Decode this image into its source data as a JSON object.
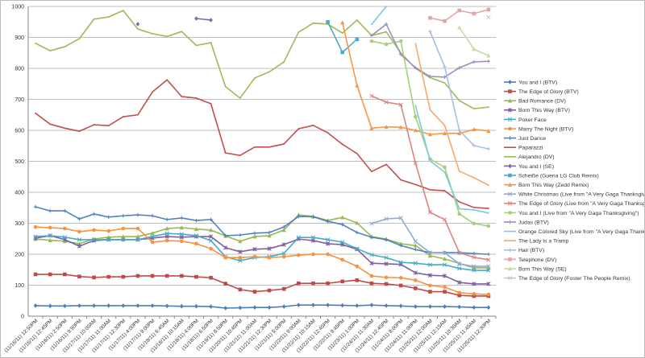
{
  "chart_data": {
    "type": "line",
    "title": "",
    "xlabel": "",
    "ylabel": "",
    "ylim": [
      0,
      1000
    ],
    "yticks": [
      0,
      100,
      200,
      300,
      400,
      500,
      600,
      700,
      800,
      900,
      1000
    ],
    "grid": true,
    "legend_position": "right",
    "categories": [
      "(11/16/11) 12:50PM",
      "(11/16/11) 12:45PM",
      "(11/16/11) 2:50PM",
      "(11/16/11) 9:50PM",
      "(11/17/11) 10:00AM",
      "(11/17/11) 11:00AM",
      "(11/17/11) 12:30PM",
      "(11/17/11) 4:00PM",
      "(11/17/11) 9:00PM",
      "(11/18/11) 6:45AM",
      "(11/18/11) 10:15AM",
      "(11/18/11) 4:00PM",
      "(11/18/11) 6:50PM",
      "(11/19/11) 8:50PM",
      "(11/20/11) 10:45PM",
      "(11/21/11) 11:00AM",
      "(11/21/11) 12:30PM",
      "(11/21/11) 5:00PM",
      "(11/22/11) 9:00AM",
      "(11/22/11) 10:15AM",
      "(11/22/11) 12:45PM",
      "(11/22/11) 9:45PM",
      "(11/23/11) 1:00PM",
      "(11/24/11) 11:30AM",
      "(11/24/11) 12:45PM",
      "(11/24/11) 8:00PM",
      "(11/24/11) 11:00PM",
      "(11/25/11) 12:00AM",
      "(11/25/11) 12:15AM",
      "(11/25/11) 10:30AM",
      "(11/25/11) 11:45AM",
      "(11/25/11) 12:30PM"
    ],
    "series": [
      {
        "name": "You and I (BTV)",
        "color": "#4A7EBB",
        "marker": "diamond",
        "values": [
          34,
          33,
          33,
          34,
          34,
          34,
          34,
          34,
          34,
          33,
          32,
          32,
          31,
          26,
          27,
          28,
          28,
          31,
          36,
          36,
          36,
          35,
          34,
          36,
          34,
          33,
          31,
          31,
          31,
          30,
          28,
          28
        ]
      },
      {
        "name": "The Edge of Glory (BTV)",
        "color": "#BE4B48",
        "marker": "square",
        "values": [
          135,
          135,
          135,
          128,
          125,
          127,
          127,
          130,
          130,
          130,
          130,
          127,
          124,
          105,
          86,
          79,
          83,
          88,
          106,
          106,
          106,
          112,
          116,
          106,
          104,
          99,
          90,
          79,
          79,
          67,
          65,
          65
        ]
      },
      {
        "name": "Bad Romance (DV)",
        "color": "#98B954",
        "marker": "triangle",
        "values": [
          249,
          245,
          242,
          234,
          249,
          255,
          257,
          257,
          268,
          283,
          286,
          281,
          278,
          259,
          242,
          257,
          260,
          278,
          327,
          322,
          309,
          319,
          301,
          257,
          249,
          234,
          228,
          195,
          185,
          170,
          156,
          156
        ]
      },
      {
        "name": "Born This Way (BTV)",
        "color": "#7D60A0",
        "marker": "star",
        "values": [
          252,
          260,
          247,
          226,
          244,
          247,
          247,
          247,
          252,
          257,
          255,
          257,
          257,
          221,
          208,
          216,
          218,
          231,
          249,
          244,
          234,
          231,
          216,
          171,
          169,
          167,
          140,
          132,
          130,
          109,
          104,
          104
        ]
      },
      {
        "name": "Poker Face",
        "color": "#46AAC5",
        "marker": "x",
        "values": [
          257,
          260,
          255,
          247,
          247,
          247,
          247,
          247,
          257,
          267,
          265,
          260,
          244,
          192,
          179,
          189,
          192,
          203,
          254,
          254,
          247,
          239,
          218,
          198,
          189,
          174,
          171,
          166,
          166,
          154,
          148,
          148
        ]
      },
      {
        "name": "Marry The Night (BTV)",
        "color": "#F69240",
        "marker": "circle",
        "values": [
          288,
          286,
          283,
          273,
          278,
          275,
          283,
          283,
          239,
          244,
          242,
          234,
          218,
          189,
          189,
          192,
          189,
          192,
          197,
          200,
          200,
          182,
          161,
          130,
          125,
          124,
          116,
          99,
          94,
          76,
          72,
          70
        ]
      },
      {
        "name": "Just Dance",
        "color": "#4F81BD",
        "marker": "plus",
        "values": [
          353,
          340,
          340,
          314,
          330,
          320,
          324,
          327,
          324,
          312,
          317,
          309,
          312,
          260,
          262,
          268,
          270,
          288,
          322,
          321,
          306,
          296,
          270,
          255,
          247,
          228,
          215,
          205,
          205,
          205,
          202,
          200
        ]
      },
      {
        "name": "Paparazzi",
        "color": "#C0504D",
        "marker": "none",
        "values": [
          655,
          620,
          607,
          597,
          618,
          615,
          644,
          650,
          724,
          763,
          709,
          704,
          686,
          527,
          519,
          546,
          546,
          556,
          605,
          616,
          592,
          555,
          525,
          467,
          490,
          440,
          425,
          408,
          405,
          369,
          351,
          348
        ]
      },
      {
        "name": "Alejandro (DV)",
        "color": "#9BBB59",
        "marker": "none",
        "values": [
          881,
          857,
          870,
          896,
          959,
          966,
          987,
          927,
          912,
          903,
          919,
          874,
          883,
          741,
          704,
          769,
          789,
          821,
          917,
          946,
          943,
          914,
          956,
          906,
          918,
          850,
          800,
          770,
          753,
          696,
          670,
          675
        ]
      },
      {
        "name": "You and I (SE)",
        "color": "#8064A2",
        "marker": "diamond",
        "values": [
          null,
          null,
          null,
          null,
          null,
          null,
          null,
          943,
          null,
          null,
          null,
          961,
          956,
          null,
          null,
          null,
          null,
          null,
          null,
          null,
          null,
          null,
          null,
          null,
          null,
          null,
          null,
          null,
          null,
          null,
          null,
          null
        ]
      },
      {
        "name": "Scheiße (Guena LG Club Remix)",
        "color": "#4BACC6",
        "marker": "square",
        "values": [
          null,
          null,
          null,
          null,
          null,
          null,
          null,
          null,
          null,
          null,
          null,
          null,
          null,
          null,
          null,
          null,
          null,
          null,
          null,
          null,
          950,
          852,
          894,
          null,
          null,
          null,
          null,
          null,
          null,
          null,
          null,
          null
        ]
      },
      {
        "name": "Born This Way (Zedd Remix)",
        "color": "#F79646",
        "marker": "triangle",
        "values": [
          null,
          null,
          null,
          null,
          null,
          null,
          null,
          null,
          null,
          null,
          null,
          null,
          null,
          null,
          null,
          null,
          null,
          null,
          null,
          null,
          null,
          948,
          745,
          607,
          611,
          610,
          600,
          587,
          590,
          590,
          603,
          598
        ]
      },
      {
        "name": "White Christmas (Live from \"A Very Gaga Thanksgiving\")",
        "color": "#8EABD6",
        "marker": "x",
        "values": [
          null,
          null,
          null,
          null,
          null,
          null,
          null,
          null,
          null,
          null,
          null,
          null,
          null,
          null,
          null,
          null,
          null,
          null,
          null,
          null,
          null,
          null,
          null,
          299,
          314,
          317,
          241,
          205,
          205,
          169,
          161,
          161
        ]
      },
      {
        "name": "The Edge of Glory (Live from \"A Very Gaga Thanksgiving\")",
        "color": "#D98582",
        "marker": "x",
        "values": [
          null,
          null,
          null,
          null,
          null,
          null,
          null,
          null,
          null,
          null,
          null,
          null,
          null,
          null,
          null,
          null,
          null,
          null,
          null,
          null,
          null,
          null,
          null,
          711,
          691,
          683,
          494,
          335,
          312,
          205,
          190,
          182
        ]
      },
      {
        "name": "You and I (Live from \"A Very Gaga Thanksgiving\")",
        "color": "#A9CF7A",
        "marker": "circle",
        "values": [
          null,
          null,
          null,
          null,
          null,
          null,
          null,
          null,
          null,
          null,
          null,
          null,
          null,
          null,
          null,
          null,
          null,
          null,
          null,
          null,
          null,
          null,
          null,
          888,
          878,
          888,
          644,
          507,
          481,
          330,
          299,
          291
        ]
      },
      {
        "name": "Judas (BTV)",
        "color": "#A08CC0",
        "marker": "plus",
        "values": [
          null,
          null,
          null,
          null,
          null,
          null,
          null,
          null,
          null,
          null,
          null,
          null,
          null,
          null,
          null,
          null,
          null,
          null,
          null,
          null,
          null,
          null,
          null,
          906,
          943,
          845,
          802,
          774,
          772,
          802,
          821,
          823
        ]
      },
      {
        "name": "Orange Colored Sky (Live from \"A Very Gaga Thanksgiving\")",
        "color": "#7FC8DC",
        "marker": "none",
        "values": [
          null,
          null,
          null,
          null,
          null,
          null,
          null,
          null,
          null,
          null,
          null,
          null,
          null,
          null,
          null,
          null,
          null,
          null,
          null,
          null,
          null,
          null,
          null,
          942,
          1000,
          null,
          680,
          501,
          465,
          347,
          343,
          333
        ]
      },
      {
        "name": "The Lady Is a Tramp",
        "color": "#F9A86A",
        "marker": "none",
        "values": [
          null,
          null,
          null,
          null,
          null,
          null,
          null,
          null,
          null,
          null,
          null,
          null,
          null,
          null,
          null,
          null,
          null,
          null,
          null,
          null,
          null,
          null,
          null,
          null,
          null,
          null,
          880,
          666,
          616,
          468,
          447,
          423
        ]
      },
      {
        "name": "Hair (BTV)",
        "color": "#A8BEE0",
        "marker": "plus",
        "values": [
          null,
          null,
          null,
          null,
          null,
          null,
          null,
          null,
          null,
          null,
          null,
          null,
          null,
          null,
          null,
          null,
          null,
          null,
          null,
          null,
          null,
          null,
          null,
          null,
          null,
          null,
          null,
          919,
          805,
          600,
          551,
          540
        ]
      },
      {
        "name": "Telephone (DV)",
        "color": "#DDA8A6",
        "marker": "square",
        "values": [
          null,
          null,
          null,
          null,
          null,
          null,
          null,
          null,
          null,
          null,
          null,
          null,
          null,
          null,
          null,
          null,
          null,
          null,
          null,
          null,
          null,
          null,
          null,
          null,
          null,
          null,
          null,
          963,
          953,
          987,
          977,
          990
        ]
      },
      {
        "name": "Born This Way (SE)",
        "color": "#C6DBA2",
        "marker": "triangle",
        "values": [
          null,
          null,
          null,
          null,
          null,
          null,
          null,
          null,
          null,
          null,
          null,
          null,
          null,
          null,
          null,
          null,
          null,
          null,
          null,
          null,
          null,
          null,
          null,
          null,
          null,
          null,
          null,
          null,
          null,
          932,
          862,
          841
        ]
      },
      {
        "name": "The Edge of Glory (Foster The People Remix)",
        "color": "#C9BEDD",
        "marker": "x",
        "values": [
          null,
          null,
          null,
          null,
          null,
          null,
          null,
          null,
          null,
          null,
          null,
          null,
          null,
          null,
          null,
          null,
          null,
          null,
          null,
          null,
          null,
          null,
          null,
          null,
          null,
          null,
          null,
          null,
          null,
          null,
          null,
          965
        ]
      }
    ]
  }
}
